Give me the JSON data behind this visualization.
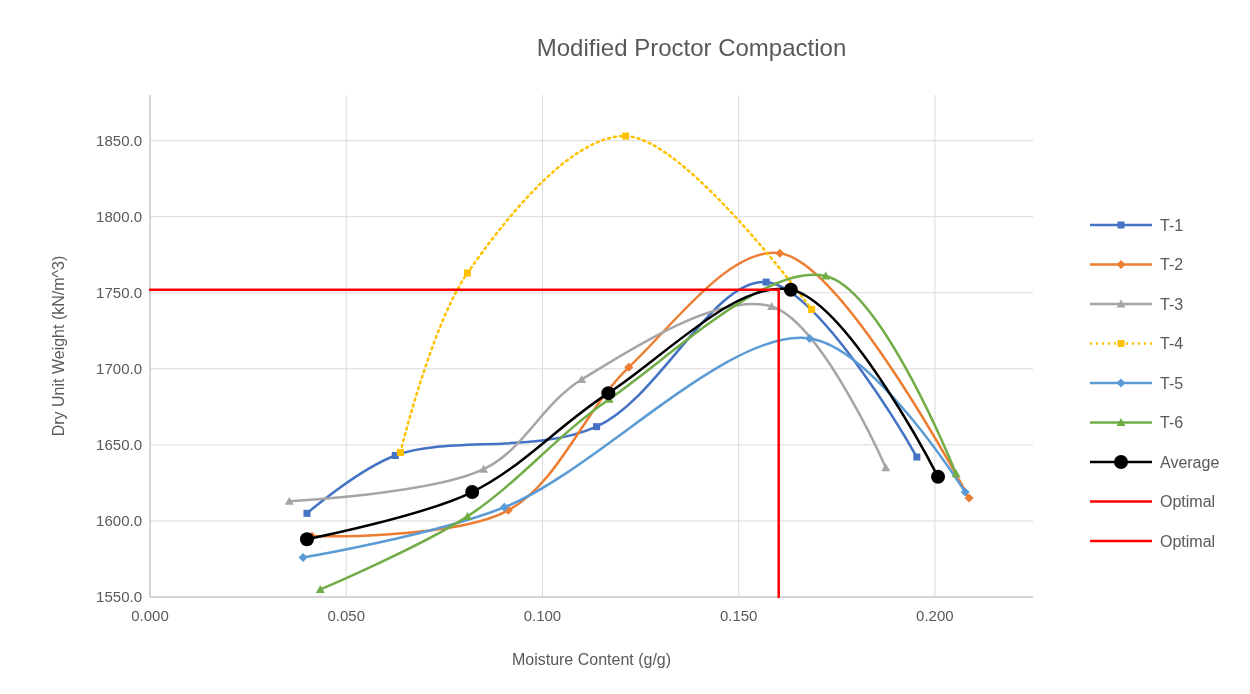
{
  "chart_data": {
    "type": "line",
    "title": "Modified Proctor Compaction",
    "xlabel": "Moisture Content  (g/g)",
    "ylabel": "Dry Unit Weight (kN/m^3)",
    "xlim": [
      0,
      0.225
    ],
    "xticks": [
      {
        "value": 0,
        "label": "0.000"
      },
      {
        "value": 0.05,
        "label": "0.050"
      },
      {
        "value": 0.1,
        "label": "0.100"
      },
      {
        "value": 0.15,
        "label": "0.150"
      },
      {
        "value": 0.2,
        "label": "0.200"
      }
    ],
    "ylim": [
      1550,
      1880
    ],
    "yticks": [
      {
        "value": 1550,
        "label": "1550.0"
      },
      {
        "value": 1600,
        "label": "1600.0"
      },
      {
        "value": 1650,
        "label": "1650.0"
      },
      {
        "value": 1700,
        "label": "1700.0"
      },
      {
        "value": 1750,
        "label": "1750.0"
      },
      {
        "value": 1800,
        "label": "1800.0"
      },
      {
        "value": 1850,
        "label": "1850.0"
      }
    ],
    "grid": true,
    "legend": "right",
    "series": [
      {
        "name": "T-1",
        "color": "#4472c4",
        "marker": "square",
        "x": [
          0.04,
          0.0625,
          0.1138,
          0.157,
          0.1954
        ],
        "values": [
          1605,
          1643,
          1662,
          1757,
          1642
        ]
      },
      {
        "name": "T-2",
        "color": "#ed7d31",
        "marker": "diamond",
        "x": [
          0.0413,
          0.0913,
          0.122,
          0.1605,
          0.2087
        ],
        "values": [
          1590,
          1607,
          1701,
          1776,
          1615
        ]
      },
      {
        "name": "T-3",
        "color": "#a5a5a5",
        "marker": "triangle",
        "x": [
          0.0355,
          0.085,
          0.11,
          0.1584,
          0.1875
        ],
        "values": [
          1613,
          1634,
          1693,
          1741,
          1635
        ]
      },
      {
        "name": "T-4",
        "color": "#ffc000",
        "marker": "square",
        "line_style": "dotted",
        "x": [
          0.0638,
          0.0809,
          0.1212,
          0.1686
        ],
        "values": [
          1645,
          1763,
          1853,
          1739
        ]
      },
      {
        "name": "T-5",
        "color": "#5b9bd5",
        "marker": "diamond",
        "x": [
          0.039,
          0.0903,
          0.116,
          0.1681,
          0.2077
        ],
        "values": [
          1576,
          1609,
          null,
          1720,
          1619
        ]
      },
      {
        "name": "T-6",
        "color": "#70ad47",
        "marker": "triangle",
        "x": [
          0.0434,
          0.0809,
          0.117,
          0.1722,
          0.2054
        ],
        "values": [
          1555,
          1603,
          1680,
          1761,
          1631
        ]
      },
      {
        "name": "Average",
        "color": "#000000",
        "marker": "circle",
        "x": [
          0.04,
          0.0821,
          0.1168,
          0.1633,
          0.2008
        ],
        "values": [
          1588,
          1619,
          1684,
          1752,
          1629
        ]
      },
      {
        "name": "Optimal",
        "color": "#ff0000",
        "marker": "none",
        "x": [
          0,
          0.1602
        ],
        "values": [
          1752,
          1752
        ]
      },
      {
        "name": "Optimal",
        "color": "#ff0000",
        "marker": "none",
        "x": [
          0.1602,
          0.1602
        ],
        "values": [
          1550,
          1752
        ]
      }
    ]
  }
}
